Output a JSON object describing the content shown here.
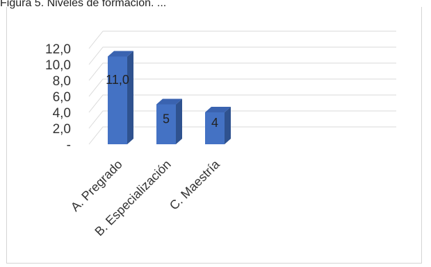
{
  "caption": "Figura 5. Niveles de formación. ...",
  "colors": {
    "bar_front": "#4472c4",
    "bar_side": "#2f528f",
    "bar_top": "#3a63b0",
    "grid": "#d9d9d9"
  },
  "chart_data": {
    "type": "bar",
    "categories": [
      "A. Pregrado",
      "B. Especialización",
      "C. Maestría"
    ],
    "values": [
      11.0,
      5,
      4
    ],
    "data_labels": [
      "11,0",
      "5",
      "4"
    ],
    "y_ticks": [
      "-",
      "2,0",
      "4,0",
      "6,0",
      "8,0",
      "10,0",
      "12,0"
    ],
    "ylim": [
      0,
      12
    ],
    "grid": true,
    "legend": "none"
  }
}
